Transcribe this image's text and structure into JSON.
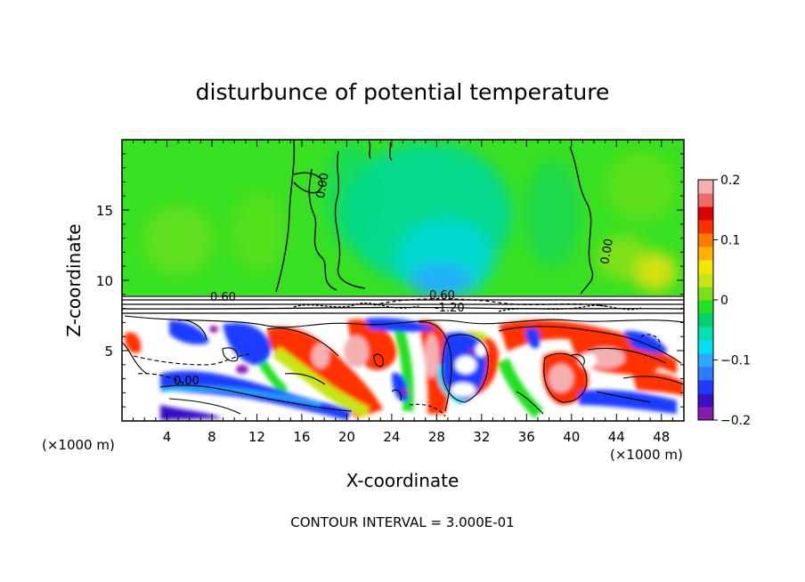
{
  "chart_data": {
    "type": "heatmap",
    "title": "disturbunce of potential temperature",
    "xlabel": "X-coordinate",
    "ylabel": "Z-coordinate",
    "x_unit_left": "(×1000 m)",
    "x_unit_right": "(×1000 m)",
    "xlim": [
      0,
      50
    ],
    "ylim": [
      0,
      20
    ],
    "x_ticks": [
      4,
      8,
      12,
      16,
      20,
      24,
      28,
      32,
      36,
      40,
      44,
      48
    ],
    "y_ticks": [
      5,
      10,
      15
    ],
    "colorbar": {
      "min": -0.2,
      "max": 0.2,
      "ticks": [
        -0.2,
        -0.1,
        0,
        0.1,
        0.2
      ],
      "tick_labels": [
        "−0.2",
        "−0.1",
        "0",
        "0.1",
        "0.2"
      ],
      "colors": [
        "#8b1bb0",
        "#3a10c8",
        "#1e3cff",
        "#2f78ff",
        "#2aa9ff",
        "#00e0f0",
        "#00e0b0",
        "#00d070",
        "#22e022",
        "#7ae01a",
        "#c8e414",
        "#f0e800",
        "#ffb000",
        "#ff7a00",
        "#ff3000",
        "#e00000",
        "#f06a6a",
        "#f4b0b0"
      ]
    },
    "contour_labels": [
      {
        "text": "0.00",
        "x": 16.6,
        "z": 16.7
      },
      {
        "text": "0.00",
        "x": 42.2,
        "z": 12.0
      },
      {
        "text": "0.60",
        "x": 9.6,
        "z": 8.6
      },
      {
        "text": "0.60",
        "x": 29.3,
        "z": 8.8
      },
      {
        "text": "-1.20",
        "x": 29.9,
        "z": 8.1
      },
      {
        "text": "0.00",
        "x": 6.3,
        "z": 3.1
      }
    ],
    "footer": "CONTOUR INTERVAL = 3.000E-01"
  }
}
